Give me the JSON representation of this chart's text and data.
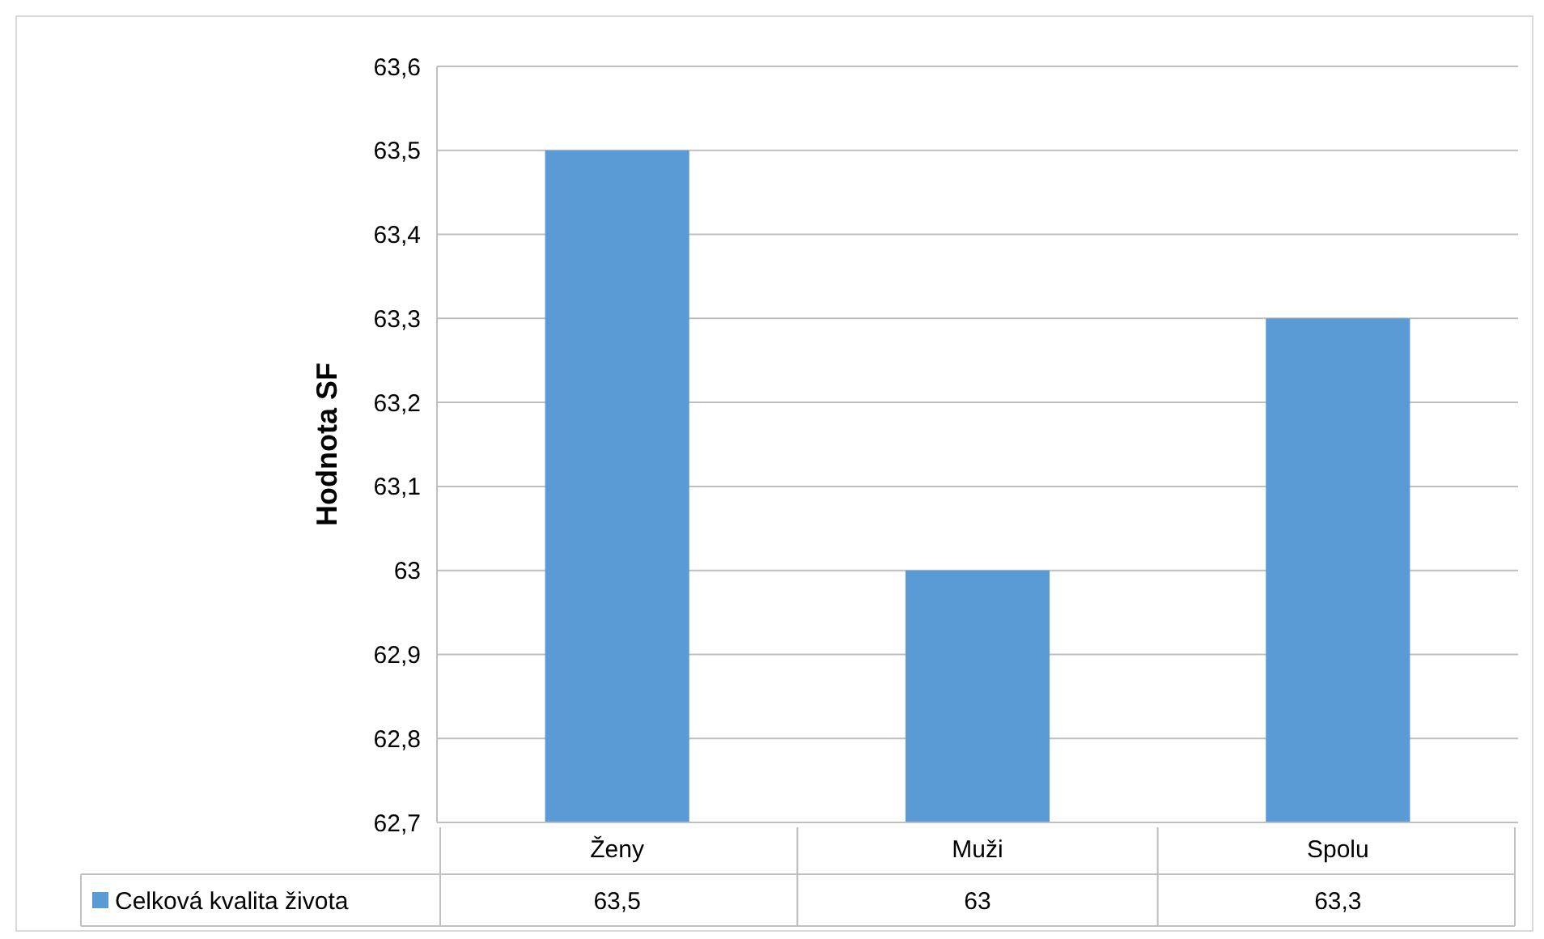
{
  "chart_data": {
    "type": "bar",
    "ylabel": "Hodnota SF",
    "categories": [
      "Ženy",
      "Muži",
      "Spolu"
    ],
    "series": [
      {
        "name": "Celková kvalita života",
        "color": "#5b9bd5",
        "values": [
          63.5,
          63,
          63.3
        ],
        "value_labels": [
          "63,5",
          "63",
          "63,3"
        ]
      }
    ],
    "ylim": [
      62.7,
      63.6
    ],
    "yticks": [
      {
        "value": 62.7,
        "label": "62,7"
      },
      {
        "value": 62.8,
        "label": "62,8"
      },
      {
        "value": 62.9,
        "label": "62,9"
      },
      {
        "value": 63,
        "label": "63"
      },
      {
        "value": 63.1,
        "label": "63,1"
      },
      {
        "value": 63.2,
        "label": "63,2"
      },
      {
        "value": 63.3,
        "label": "63,3"
      },
      {
        "value": 63.4,
        "label": "63,4"
      },
      {
        "value": 63.5,
        "label": "63,5"
      },
      {
        "value": 63.6,
        "label": "63,6"
      }
    ],
    "grid": "y",
    "legend": "bottom left"
  }
}
